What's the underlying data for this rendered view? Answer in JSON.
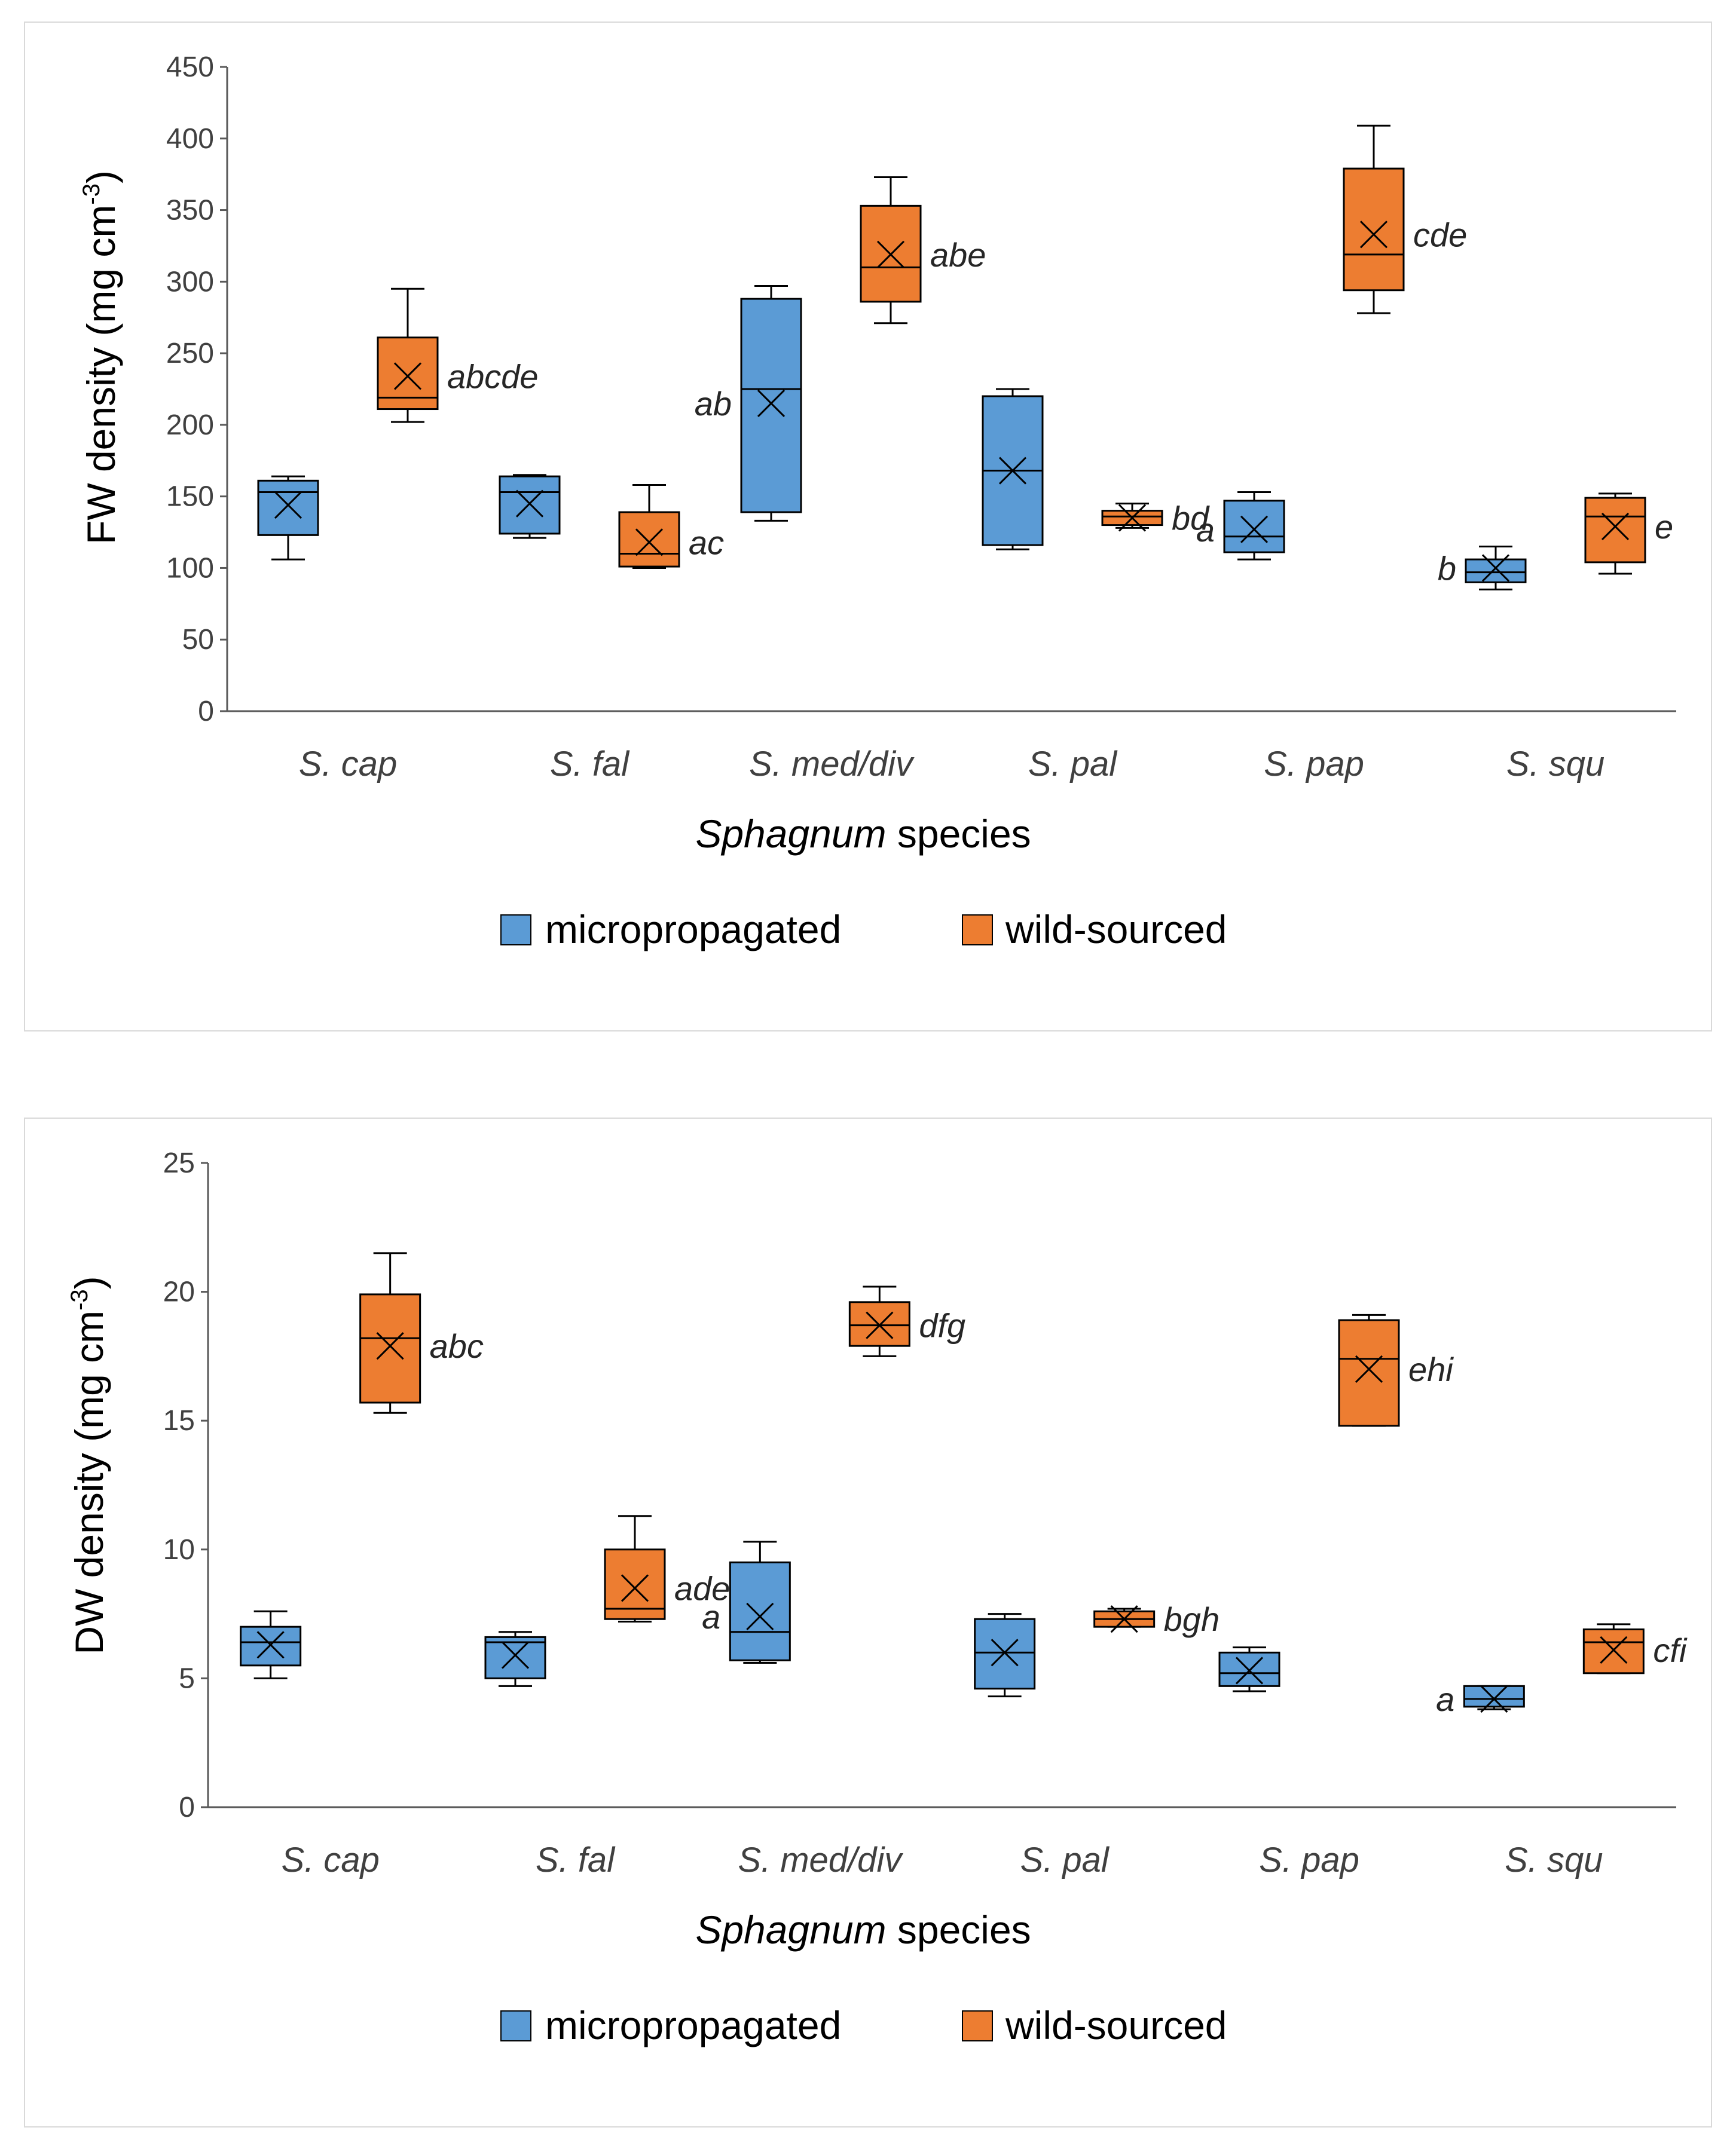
{
  "colors": {
    "micropropagated": "#5b9bd5",
    "wild_sourced": "#ed7d31",
    "axis": "#595959",
    "text": "#404040"
  },
  "legend": {
    "micropropagated": "micropropagated",
    "wild_sourced": "wild-sourced"
  },
  "xlabel": {
    "italic": "Sphagnum",
    "rest": " species"
  },
  "chart_data": [
    {
      "type": "box",
      "ylabel": "FW density (mg cm",
      "ylabel_unit": "-3",
      "ylabel_close": ")",
      "ylim": [
        0,
        450
      ],
      "yticks": [
        0,
        50,
        100,
        150,
        200,
        250,
        300,
        350,
        400,
        450
      ],
      "categories": [
        "S. cap",
        "S. fal",
        "S. med/div",
        "S. pal",
        "S. pap",
        "S. squ"
      ],
      "series": [
        {
          "name": "micropropagated",
          "boxes": [
            {
              "min": 106,
              "q1": 123,
              "median": 153,
              "q3": 161,
              "max": 164,
              "mean": 144,
              "label": ""
            },
            {
              "min": 121,
              "q1": 124,
              "median": 153,
              "q3": 164,
              "max": 165,
              "mean": 145,
              "label": ""
            },
            {
              "min": 133,
              "q1": 139,
              "median": 225,
              "q3": 288,
              "max": 297,
              "mean": 215,
              "label": "ab"
            },
            {
              "min": 113,
              "q1": 116,
              "median": 168,
              "q3": 220,
              "max": 225,
              "mean": 168,
              "label": ""
            },
            {
              "min": 106,
              "q1": 111,
              "median": 122,
              "q3": 147,
              "max": 153,
              "mean": 127,
              "label": "a"
            },
            {
              "min": 85,
              "q1": 90,
              "median": 97,
              "q3": 106,
              "max": 115,
              "mean": 100,
              "label": "b"
            }
          ]
        },
        {
          "name": "wild-sourced",
          "boxes": [
            {
              "min": 202,
              "q1": 211,
              "median": 219,
              "q3": 261,
              "max": 295,
              "mean": 234,
              "label": "abcde"
            },
            {
              "min": 100,
              "q1": 101,
              "median": 110,
              "q3": 139,
              "max": 158,
              "mean": 118,
              "label": "ac"
            },
            {
              "min": 271,
              "q1": 286,
              "median": 310,
              "q3": 353,
              "max": 373,
              "mean": 319,
              "label": "abe"
            },
            {
              "min": 128,
              "q1": 130,
              "median": 136,
              "q3": 140,
              "max": 145,
              "mean": 135,
              "label": "bd"
            },
            {
              "min": 278,
              "q1": 294,
              "median": 319,
              "q3": 379,
              "max": 409,
              "mean": 333,
              "label": "cde"
            },
            {
              "min": 96,
              "q1": 104,
              "median": 136,
              "q3": 149,
              "max": 152,
              "mean": 129,
              "label": "e"
            }
          ]
        }
      ]
    },
    {
      "type": "box",
      "ylabel": "DW density (mg cm",
      "ylabel_unit": "-3",
      "ylabel_close": ")",
      "ylim": [
        0,
        25
      ],
      "yticks": [
        0,
        5,
        10,
        15,
        20,
        25
      ],
      "categories": [
        "S. cap",
        "S. fal",
        "S. med/div",
        "S. pal",
        "S. pap",
        "S. squ"
      ],
      "series": [
        {
          "name": "micropropagated",
          "boxes": [
            {
              "min": 5.0,
              "q1": 5.5,
              "median": 6.4,
              "q3": 7.0,
              "max": 7.6,
              "mean": 6.3,
              "label": ""
            },
            {
              "min": 4.7,
              "q1": 5.0,
              "median": 6.4,
              "q3": 6.6,
              "max": 6.8,
              "mean": 5.9,
              "label": ""
            },
            {
              "min": 5.6,
              "q1": 5.7,
              "median": 6.8,
              "q3": 9.5,
              "max": 10.3,
              "mean": 7.4,
              "label": "a"
            },
            {
              "min": 4.3,
              "q1": 4.6,
              "median": 6.0,
              "q3": 7.3,
              "max": 7.5,
              "mean": 6.0,
              "label": ""
            },
            {
              "min": 4.5,
              "q1": 4.7,
              "median": 5.2,
              "q3": 6.0,
              "max": 6.2,
              "mean": 5.3,
              "label": ""
            },
            {
              "min": 3.8,
              "q1": 3.9,
              "median": 4.2,
              "q3": 4.7,
              "max": 4.7,
              "mean": 4.2,
              "label": "a"
            }
          ]
        },
        {
          "name": "wild-sourced",
          "boxes": [
            {
              "min": 15.3,
              "q1": 15.7,
              "median": 18.2,
              "q3": 19.9,
              "max": 21.5,
              "mean": 17.9,
              "label": "abc"
            },
            {
              "min": 7.2,
              "q1": 7.3,
              "median": 7.7,
              "q3": 10.0,
              "max": 11.3,
              "mean": 8.5,
              "label": "ade"
            },
            {
              "min": 17.5,
              "q1": 17.9,
              "median": 18.7,
              "q3": 19.6,
              "max": 20.2,
              "mean": 18.7,
              "label": "dfg"
            },
            {
              "min": 7.0,
              "q1": 7.0,
              "median": 7.3,
              "q3": 7.6,
              "max": 7.7,
              "mean": 7.3,
              "label": "bgh"
            },
            {
              "min": 14.8,
              "q1": 14.8,
              "median": 17.4,
              "q3": 18.9,
              "max": 19.1,
              "mean": 17.0,
              "label": "ehi"
            },
            {
              "min": 5.2,
              "q1": 5.2,
              "median": 6.4,
              "q3": 6.9,
              "max": 7.1,
              "mean": 6.1,
              "label": "cfi"
            }
          ]
        }
      ]
    }
  ]
}
